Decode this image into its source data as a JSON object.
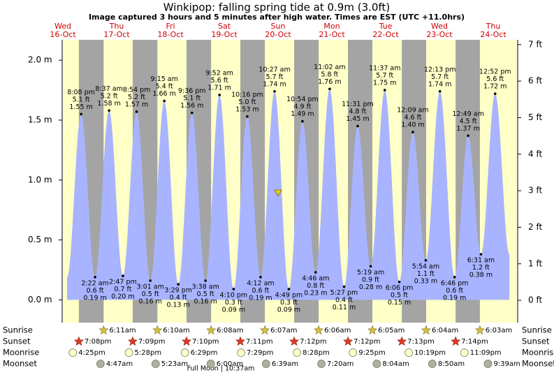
{
  "chart_data": {
    "type": "tide",
    "title": "Winkipop: falling  spring tide at 0.9m (3.0ft)",
    "subtitle": "Image captured 3 hours and 5 minutes after high water. Times are EST (UTC +11.0hrs)",
    "days": [
      {
        "day": "Wed",
        "date": "16-Oct"
      },
      {
        "day": "Thu",
        "date": "17-Oct"
      },
      {
        "day": "Fri",
        "date": "18-Oct"
      },
      {
        "day": "Sat",
        "date": "19-Oct"
      },
      {
        "day": "Sun",
        "date": "20-Oct"
      },
      {
        "day": "Mon",
        "date": "21-Oct"
      },
      {
        "day": "Tue",
        "date": "22-Oct"
      },
      {
        "day": "Wed",
        "date": "23-Oct"
      },
      {
        "day": "Thu",
        "date": "24-Oct"
      }
    ],
    "ylim": [
      -0.19,
      2.17
    ],
    "yticks": [
      {
        "value": 0,
        "label": "0.0 m"
      },
      {
        "value": 0.5,
        "label": "0.5 m"
      },
      {
        "value": 1,
        "label": "1.0 m"
      },
      {
        "value": 1.5,
        "label": "1.5 m"
      },
      {
        "value": 2,
        "label": "2.0 m"
      }
    ],
    "y2lim": [
      -0.61,
      7.13
    ],
    "y2ticks": [
      {
        "value": 0,
        "label": "0 ft"
      },
      {
        "value": 1,
        "label": "1 ft"
      },
      {
        "value": 2,
        "label": "2 ft"
      },
      {
        "value": 3,
        "label": "3 ft"
      },
      {
        "value": 4,
        "label": "4 ft"
      },
      {
        "value": 5,
        "label": "5 ft"
      },
      {
        "value": 6,
        "label": "6 ft"
      },
      {
        "value": 7,
        "label": "7 ft"
      }
    ],
    "color": "#a8b4ff",
    "extremes": [
      {
        "time": "8:08 pm",
        "ft": {
          "value": 5.1,
          "label": "5.1 ft"
        },
        "m": {
          "value": 1.55,
          "label": "1.55 m"
        }
      },
      {
        "time": "2:22 am",
        "ft": {
          "value": 0.6,
          "label": "0.6 ft"
        },
        "m": {
          "value": 0.19,
          "label": "0.19 m"
        }
      },
      {
        "time": "8:37 am",
        "ft": {
          "value": 5.2,
          "label": "5.2 ft"
        },
        "m": {
          "value": 1.58,
          "label": "1.58 m"
        }
      },
      {
        "time": "2:47 pm",
        "ft": {
          "value": 0.7,
          "label": "0.7 ft"
        },
        "m": {
          "value": 0.2,
          "label": "0.20 m"
        }
      },
      {
        "time": "8:54 pm",
        "ft": {
          "value": 5.2,
          "label": "5.2 ft"
        },
        "m": {
          "value": 1.57,
          "label": "1.57 m"
        }
      },
      {
        "time": "3:01 am",
        "ft": {
          "value": 0.5,
          "label": "0.5 ft"
        },
        "m": {
          "value": 0.16,
          "label": "0.16 m"
        }
      },
      {
        "time": "9:15 am",
        "ft": {
          "value": 5.4,
          "label": "5.4 ft"
        },
        "m": {
          "value": 1.66,
          "label": "1.66 m"
        }
      },
      {
        "time": "3:29 pm",
        "ft": {
          "value": 0.4,
          "label": "0.4 ft"
        },
        "m": {
          "value": 0.13,
          "label": "0.13 m"
        }
      },
      {
        "time": "9:36 pm",
        "ft": {
          "value": 5.1,
          "label": "5.1 ft"
        },
        "m": {
          "value": 1.56,
          "label": "1.56 m"
        }
      },
      {
        "time": "3:38 am",
        "ft": {
          "value": 0.5,
          "label": "0.5 ft"
        },
        "m": {
          "value": 0.16,
          "label": "0.16 m"
        }
      },
      {
        "time": "9:52 am",
        "ft": {
          "value": 5.6,
          "label": "5.6 ft"
        },
        "m": {
          "value": 1.71,
          "label": "1.71 m"
        }
      },
      {
        "time": "4:10 pm",
        "ft": {
          "value": 0.3,
          "label": "0.3 ft"
        },
        "m": {
          "value": 0.09,
          "label": "0.09 m"
        }
      },
      {
        "time": "10:16 pm",
        "ft": {
          "value": 5,
          "label": "5.0 ft"
        },
        "m": {
          "value": 1.53,
          "label": "1.53 m"
        }
      },
      {
        "time": "4:12 am",
        "ft": {
          "value": 0.6,
          "label": "0.6 ft"
        },
        "m": {
          "value": 0.19,
          "label": "0.19 m"
        }
      },
      {
        "time": "10:27 am",
        "ft": {
          "value": 5.7,
          "label": "5.7 ft"
        },
        "m": {
          "value": 1.74,
          "label": "1.74 m"
        }
      },
      {
        "time": "4:49 pm",
        "ft": {
          "value": 0.3,
          "label": "0.3 ft"
        },
        "m": {
          "value": 0.09,
          "label": "0.09 m"
        }
      },
      {
        "time": "10:54 pm",
        "ft": {
          "value": 4.9,
          "label": "4.9 ft"
        },
        "m": {
          "value": 1.49,
          "label": "1.49 m"
        }
      },
      {
        "time": "4:46 am",
        "ft": {
          "value": 0.8,
          "label": "0.8 ft"
        },
        "m": {
          "value": 0.23,
          "label": "0.23 m"
        }
      },
      {
        "time": "11:02 am",
        "ft": {
          "value": 5.8,
          "label": "5.8 ft"
        },
        "m": {
          "value": 1.76,
          "label": "1.76 m"
        }
      },
      {
        "time": "5:27 pm",
        "ft": {
          "value": 0.4,
          "label": "0.4 ft"
        },
        "m": {
          "value": 0.11,
          "label": "0.11 m"
        }
      },
      {
        "time": "11:31 pm",
        "ft": {
          "value": 4.8,
          "label": "4.8 ft"
        },
        "m": {
          "value": 1.45,
          "label": "1.45 m"
        }
      },
      {
        "time": "5:19 am",
        "ft": {
          "value": 0.9,
          "label": "0.9 ft"
        },
        "m": {
          "value": 0.28,
          "label": "0.28 m"
        }
      },
      {
        "time": "11:37 am",
        "ft": {
          "value": 5.7,
          "label": "5.7 ft"
        },
        "m": {
          "value": 1.75,
          "label": "1.75 m"
        }
      },
      {
        "time": "6:06 pm",
        "ft": {
          "value": 0.5,
          "label": "0.5 ft"
        },
        "m": {
          "value": 0.15,
          "label": "0.15 m"
        }
      },
      {
        "time": "12:09 am",
        "ft": {
          "value": 4.6,
          "label": "4.6 ft"
        },
        "m": {
          "value": 1.4,
          "label": "1.40 m"
        }
      },
      {
        "time": "5:54 am",
        "ft": {
          "value": 1.1,
          "label": "1.1 ft"
        },
        "m": {
          "value": 0.33,
          "label": "0.33 m"
        }
      },
      {
        "time": "12:13 pm",
        "ft": {
          "value": 5.7,
          "label": "5.7 ft"
        },
        "m": {
          "value": 1.74,
          "label": "1.74 m"
        }
      },
      {
        "time": "6:46 pm",
        "ft": {
          "value": 0.6,
          "label": "0.6 ft"
        },
        "m": {
          "value": 0.19,
          "label": "0.19 m"
        }
      },
      {
        "time": "12:49 am",
        "ft": {
          "value": 4.5,
          "label": "4.5 ft"
        },
        "m": {
          "value": 1.37,
          "label": "1.37 m"
        }
      },
      {
        "time": "6:31 am",
        "ft": {
          "value": 1.2,
          "label": "1.2 ft"
        },
        "m": {
          "value": 0.38,
          "label": "0.38 m"
        }
      },
      {
        "time": "12:52 pm",
        "ft": {
          "value": 5.6,
          "label": "5.6 ft"
        },
        "m": {
          "value": 1.72,
          "label": "1.72 m"
        }
      }
    ],
    "events": [
      {
        "name": "Sunrise",
        "times": [
          "6:11am",
          "6:10am",
          "6:08am",
          "6:07am",
          "6:06am",
          "6:05am",
          "6:04am",
          "6:03am"
        ]
      },
      {
        "name": "Sunset",
        "times": [
          "7:08pm",
          "7:09pm",
          "7:10pm",
          "7:11pm",
          "7:12pm",
          "7:12pm",
          "7:13pm",
          "7:14pm"
        ]
      },
      {
        "name": "Moonrise",
        "times": [
          "4:25pm",
          "5:28pm",
          "6:29pm",
          "7:29pm",
          "8:28pm",
          "9:25pm",
          "10:19pm",
          "11:09pm"
        ]
      },
      {
        "name": "Moonset",
        "times": [
          "4:47am",
          "5:23am",
          "6:00am",
          "6:39am",
          "7:20am",
          "8:04am",
          "8:50am",
          "9:39am"
        ]
      }
    ],
    "moon_phase": "Full Moon | 10:37am"
  }
}
